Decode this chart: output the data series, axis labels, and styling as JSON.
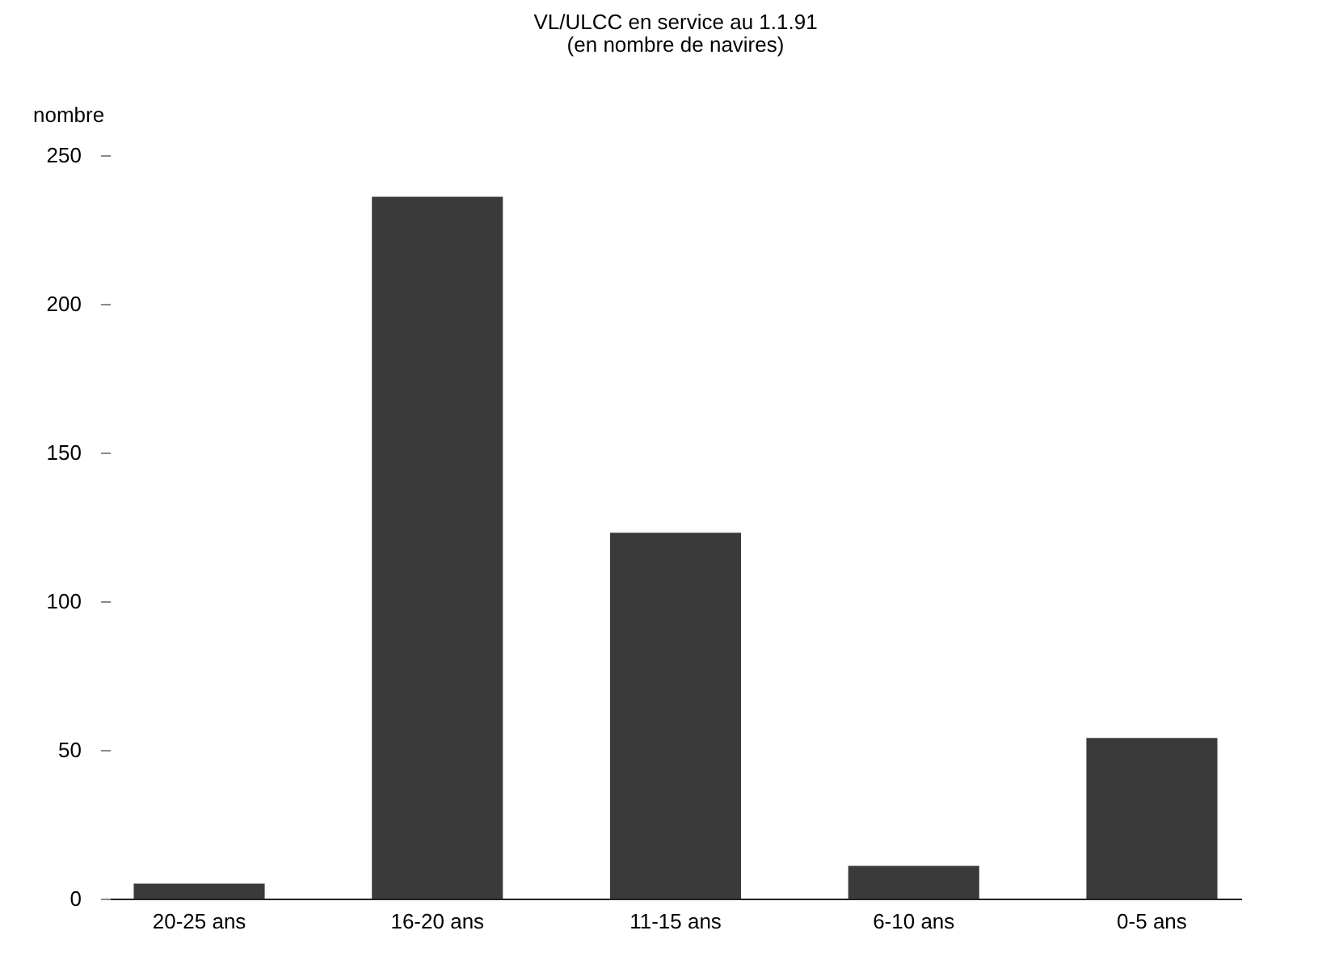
{
  "chart_data": {
    "type": "bar",
    "title": "VL/ULCC en service au 1.1.91",
    "subtitle": "(en nombre de navires)",
    "ylabel": "nombre",
    "categories": [
      "20-25 ans",
      "16-20 ans",
      "11-15 ans",
      "6-10 ans",
      "0-5 ans"
    ],
    "values": [
      5,
      236,
      123,
      11,
      54
    ],
    "color": "#3a3a3a",
    "ylim": [
      0,
      250
    ],
    "yticks": [
      0,
      50,
      100,
      150,
      200,
      250
    ],
    "grid": false
  }
}
